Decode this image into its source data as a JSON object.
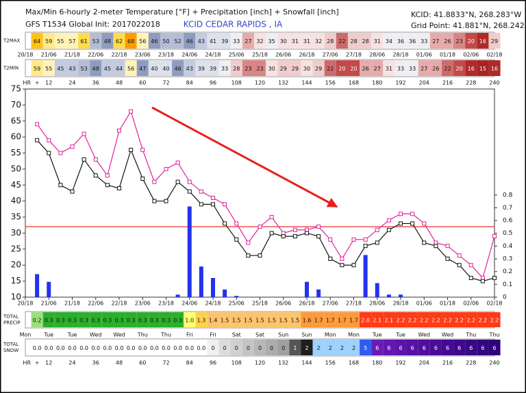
{
  "header": {
    "title": "Max/Min 6-hourly 2-meter Temperature [°F] + Precipitation [inch] + Snowfall [inch]",
    "model": "GFS T1534 Global Init: 2017022018",
    "station": "KCID CEDAR RAPIDS , IA",
    "coords": [
      "KCID: 41.8833°N, 268.283°W",
      "Grid Point: 41.881°N, 268.242°W"
    ]
  },
  "chart_data": {
    "type": "meteogram",
    "x": [
      6,
      12,
      18,
      24,
      30,
      36,
      42,
      48,
      54,
      60,
      66,
      72,
      78,
      84,
      90,
      96,
      102,
      108,
      114,
      120,
      126,
      132,
      138,
      144,
      150,
      156,
      162,
      168,
      174,
      180,
      186,
      192,
      198,
      204,
      210,
      216,
      222,
      228,
      234,
      240
    ],
    "xlim": [
      0,
      240
    ],
    "xticks": [
      {
        "value": 0,
        "label": "20/18"
      },
      {
        "value": 12,
        "label": "21/06"
      },
      {
        "value": 24,
        "label": "21/18"
      },
      {
        "value": 36,
        "label": "22/06"
      },
      {
        "value": 48,
        "label": "22/18"
      },
      {
        "value": 60,
        "label": "23/06"
      },
      {
        "value": 72,
        "label": "23/18"
      },
      {
        "value": 84,
        "label": "24/06"
      },
      {
        "value": 96,
        "label": "24/18"
      },
      {
        "value": 108,
        "label": "25/06"
      },
      {
        "value": 120,
        "label": "25/18"
      },
      {
        "value": 132,
        "label": "26/06"
      },
      {
        "value": 144,
        "label": "26/18"
      },
      {
        "value": 156,
        "label": "27/06"
      },
      {
        "value": 168,
        "label": "27/18"
      },
      {
        "value": 180,
        "label": "28/06"
      },
      {
        "value": 192,
        "label": "28/18"
      },
      {
        "value": 204,
        "label": "01/06"
      },
      {
        "value": 216,
        "label": "01/18"
      },
      {
        "value": 228,
        "label": "02/06"
      },
      {
        "value": 240,
        "label": "02/18"
      }
    ],
    "ylim": [
      10,
      75
    ],
    "yticks": [
      10,
      15,
      20,
      25,
      30,
      35,
      40,
      45,
      50,
      55,
      60,
      65,
      70,
      75
    ],
    "y2lim": [
      0,
      1.63
    ],
    "y2ticks": [
      0,
      0.1,
      0.2,
      0.3,
      0.4,
      0.5,
      0.6,
      0.7,
      0.8
    ],
    "series": [
      {
        "name": "T2MAX",
        "color": "#e0209a",
        "values": [
          64,
          59,
          55,
          57,
          61,
          53,
          48,
          62,
          68,
          56,
          46,
          50,
          52,
          46,
          43,
          41,
          39,
          33,
          27,
          32,
          35,
          30,
          31,
          31,
          32,
          28,
          22,
          28,
          28,
          31,
          34,
          36,
          36,
          33,
          27,
          26,
          23,
          20,
          16,
          29
        ]
      },
      {
        "name": "T2MIN",
        "color": "#111111",
        "values": [
          59,
          55,
          45,
          43,
          53,
          48,
          45,
          44,
          56,
          47,
          40,
          40,
          46,
          43,
          39,
          39,
          33,
          28,
          23,
          23,
          30,
          29,
          29,
          30,
          29,
          22,
          20,
          20,
          26,
          27,
          31,
          33,
          33,
          27,
          26,
          22,
          20,
          16,
          15,
          16
        ]
      },
      {
        "type": "bar",
        "axis": "y2",
        "color": "#2233ee",
        "values": [
          0.18,
          0.12,
          0,
          0,
          0,
          0,
          0,
          0,
          0,
          0,
          0,
          0,
          0.02,
          0.71,
          0.24,
          0.15,
          0.06,
          0.01,
          0,
          0,
          0,
          0,
          0,
          0.12,
          0.06,
          0,
          0,
          0,
          0.33,
          0.11,
          0.02,
          0.02,
          0,
          0,
          0,
          0,
          0,
          0,
          0,
          0
        ]
      }
    ],
    "reference_line": {
      "value": 32,
      "color": "#e8302a"
    },
    "annotations": [
      "68",
      "28"
    ],
    "cell_palette": [
      [
        15,
        "#a82424"
      ],
      [
        16,
        "#b02a2a"
      ],
      [
        20,
        "#c44a4a"
      ],
      [
        22,
        "#cf6a6a"
      ],
      [
        23,
        "#d98585"
      ],
      [
        27,
        "#e6aaaa"
      ],
      [
        29,
        "#f0cccc"
      ],
      [
        32,
        "#f6e2e2"
      ],
      [
        36,
        "#eeeef3"
      ],
      [
        41,
        "#dde1ec"
      ],
      [
        45,
        "#c3cbe0"
      ],
      [
        48,
        "#8f9cc0"
      ],
      [
        53,
        "#b5bdd6"
      ],
      [
        57,
        "#fff3b8"
      ],
      [
        59,
        "#ffe98a"
      ],
      [
        62,
        "#ffdc4a"
      ],
      [
        64,
        "#ffc21a"
      ],
      [
        99,
        "#ff9d00"
      ]
    ]
  },
  "hr_axis": {
    "label": "HR",
    "ticks": [
      {
        "value": 6,
        "label": "+"
      },
      12,
      24,
      36,
      48,
      60,
      72,
      84,
      96,
      108,
      120,
      132,
      144,
      156,
      168,
      180,
      192,
      204,
      216,
      228,
      240
    ]
  },
  "precip_total": {
    "label": [
      "TOTAL",
      "PRECIP"
    ],
    "values": [
      "0.2",
      "0.3",
      "0.3",
      "0.3",
      "0.3",
      "0.3",
      "0.3",
      "0.3",
      "0.3",
      "0.3",
      "0.3",
      "0.3",
      "0.3",
      "1.0",
      "1.3",
      "1.4",
      "1.5",
      "1.5",
      "1.5",
      "1.5",
      "1.5",
      "1.5",
      "1.5",
      "1.6",
      "1.7",
      "1.7",
      "1.7",
      "1.7",
      "2.0",
      "2.1",
      "2.1",
      "2.2",
      "2.2",
      "2.2",
      "2.2",
      "2.2",
      "2.2",
      "2.2",
      "2.2",
      "2.2"
    ],
    "palette": [
      [
        0.2,
        "#9be07c"
      ],
      [
        0.3,
        "#2ab02a"
      ],
      [
        1.0,
        "#ffff73"
      ],
      [
        1.3,
        "#ffd24a"
      ],
      [
        1.5,
        "#ffc36b"
      ],
      [
        1.7,
        "#ff9a3a"
      ],
      [
        9,
        "#ff3a14"
      ]
    ]
  },
  "days": [
    "Mon",
    "Tue",
    "Tue",
    "Wed",
    "Wed",
    "Thu",
    "Thu",
    "Fri",
    "Fri",
    "Sat",
    "Sat",
    "Sun",
    "Sun",
    "Mon",
    "Mon",
    "Tue",
    "Tue",
    "Wed",
    "Wed",
    "Thu",
    "Thu"
  ],
  "snow_total": {
    "label": [
      "TOTAL",
      "SNOW"
    ],
    "values": [
      "0.0",
      "0.0",
      "0.0",
      "0.0",
      "0.0",
      "0.0",
      "0.0",
      "0.0",
      "0.0",
      "0.0",
      "0.0",
      "0.0",
      "0.0",
      "0.0",
      "0.0",
      "0",
      "0",
      "0",
      "0",
      "0",
      "0",
      "0",
      "1",
      "2",
      "2",
      "2",
      "2",
      "2",
      "5",
      "6",
      "6",
      "6",
      "6",
      "6",
      "6",
      "6",
      "6",
      "6",
      "6",
      "6"
    ],
    "colors": [
      "#ffffff",
      "#ffffff",
      "#ffffff",
      "#ffffff",
      "#ffffff",
      "#ffffff",
      "#ffffff",
      "#ffffff",
      "#ffffff",
      "#ffffff",
      "#ffffff",
      "#ffffff",
      "#ffffff",
      "#ffffff",
      "#ffffff",
      "#f0f0f0",
      "#dcdcdc",
      "#d0d0d0",
      "#c4c4c4",
      "#b8b8b8",
      "#acacac",
      "#a0a0a0",
      "#555555",
      "#1e1e1e",
      "#9fd0ff",
      "#9fd0ff",
      "#9fd0ff",
      "#9fd0ff",
      "#2f5cf0",
      "#6a1bb5",
      "#6317b0",
      "#5c14aa",
      "#5611a4",
      "#500e9e",
      "#4a0c98",
      "#440a92",
      "#3e088c",
      "#380686",
      "#330580",
      "#2e047a"
    ]
  }
}
